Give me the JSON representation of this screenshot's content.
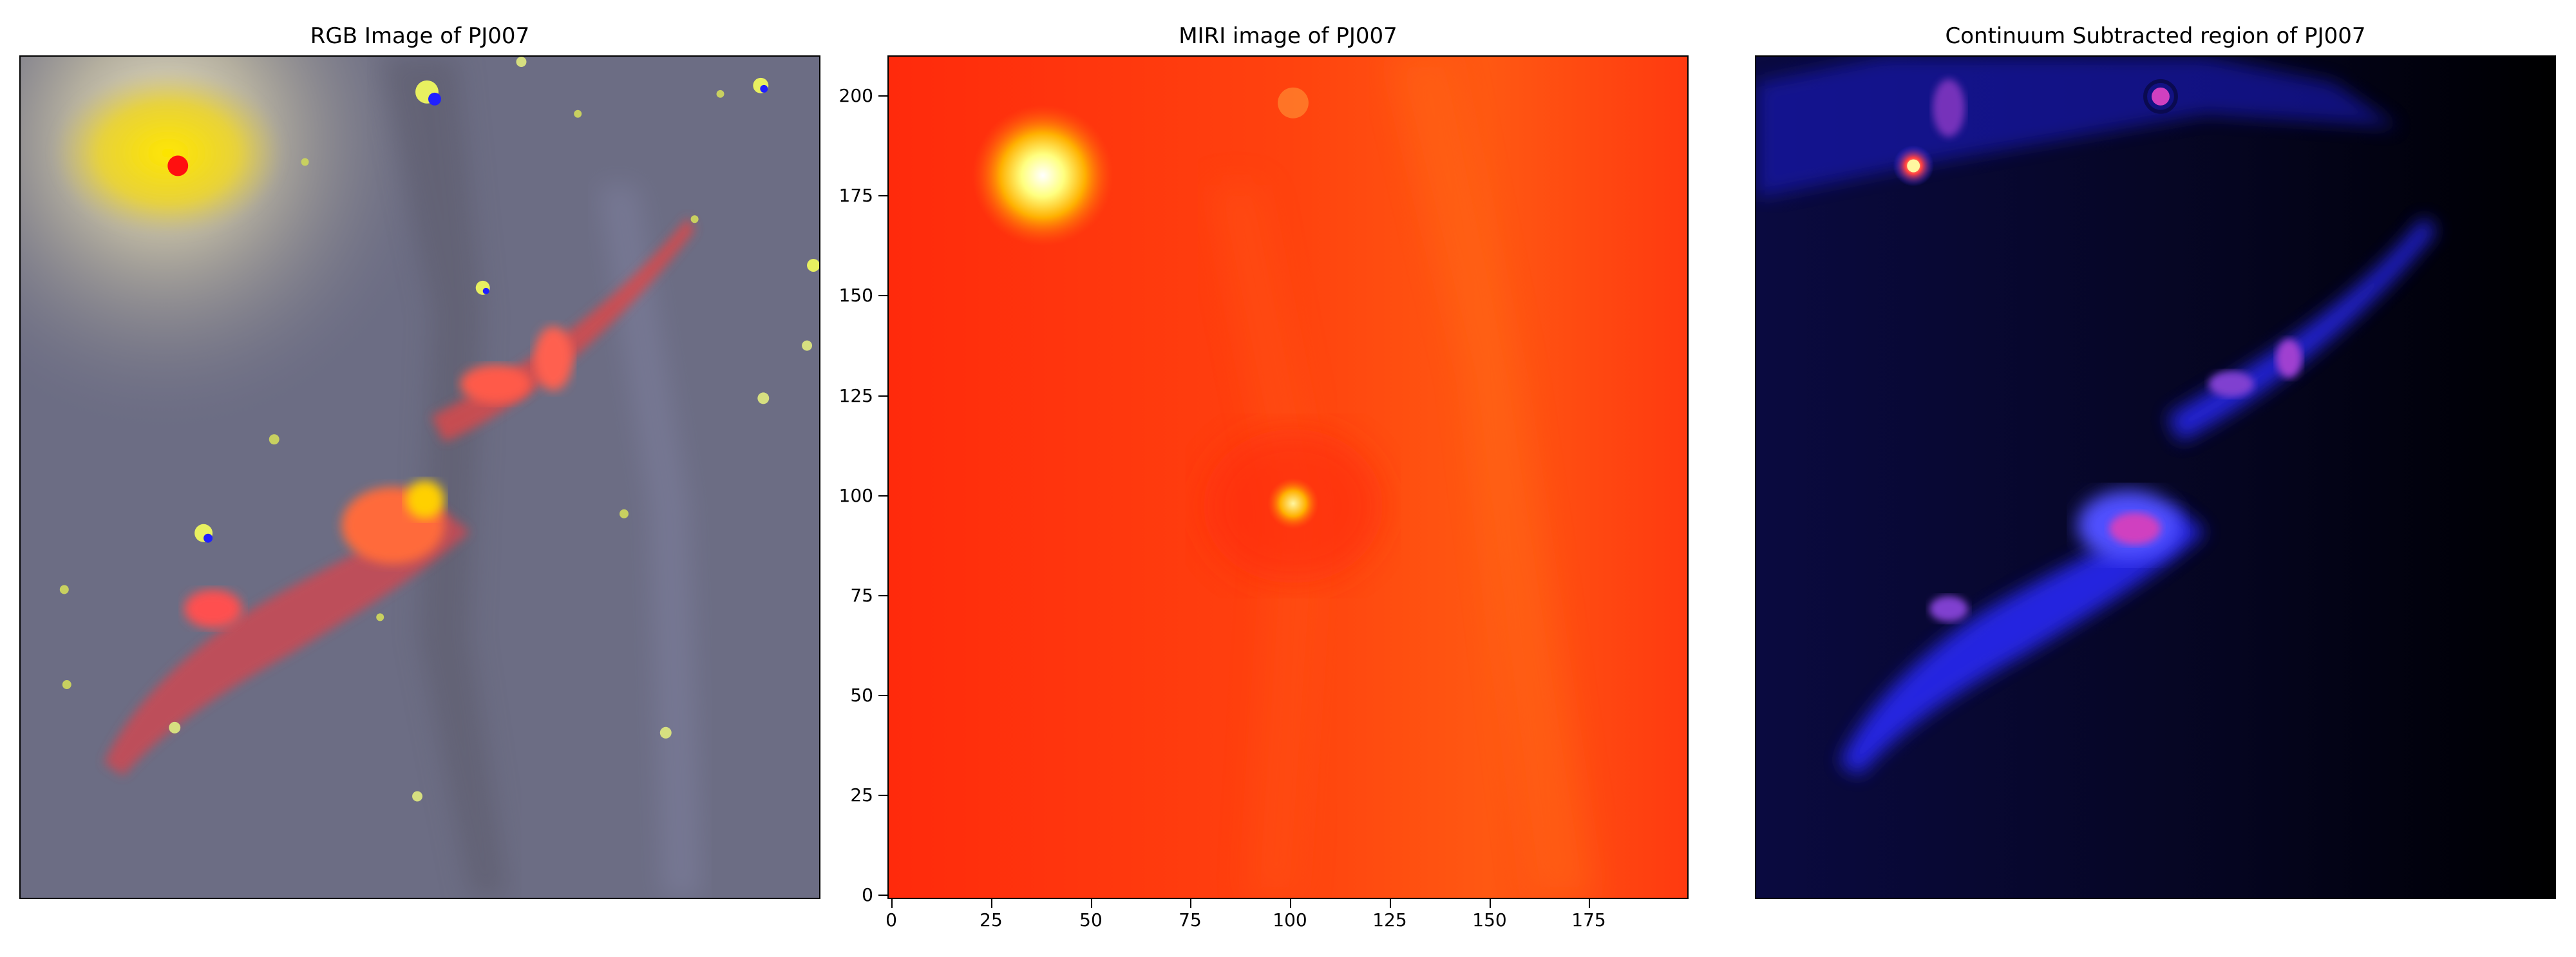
{
  "panels": [
    {
      "title": "RGB Image of PJ007"
    },
    {
      "title": "MIRI image of PJ007"
    },
    {
      "title": "Continuum Subtracted region of PJ007"
    }
  ],
  "miri_axes": {
    "x_ticks": [
      "0",
      "25",
      "50",
      "75",
      "100",
      "125",
      "150",
      "175"
    ],
    "y_ticks": [
      "0",
      "25",
      "50",
      "75",
      "100",
      "125",
      "150",
      "175",
      "200"
    ],
    "xlim": [
      -1,
      200
    ],
    "ylim": [
      -1,
      210
    ]
  },
  "colors": {
    "rgb_background": "#6e6f86",
    "miri_background": "#ff3a10",
    "continuum_background": "#000018",
    "jet_red": "#ff4c4c",
    "jet_blue": "#3a3aff"
  }
}
